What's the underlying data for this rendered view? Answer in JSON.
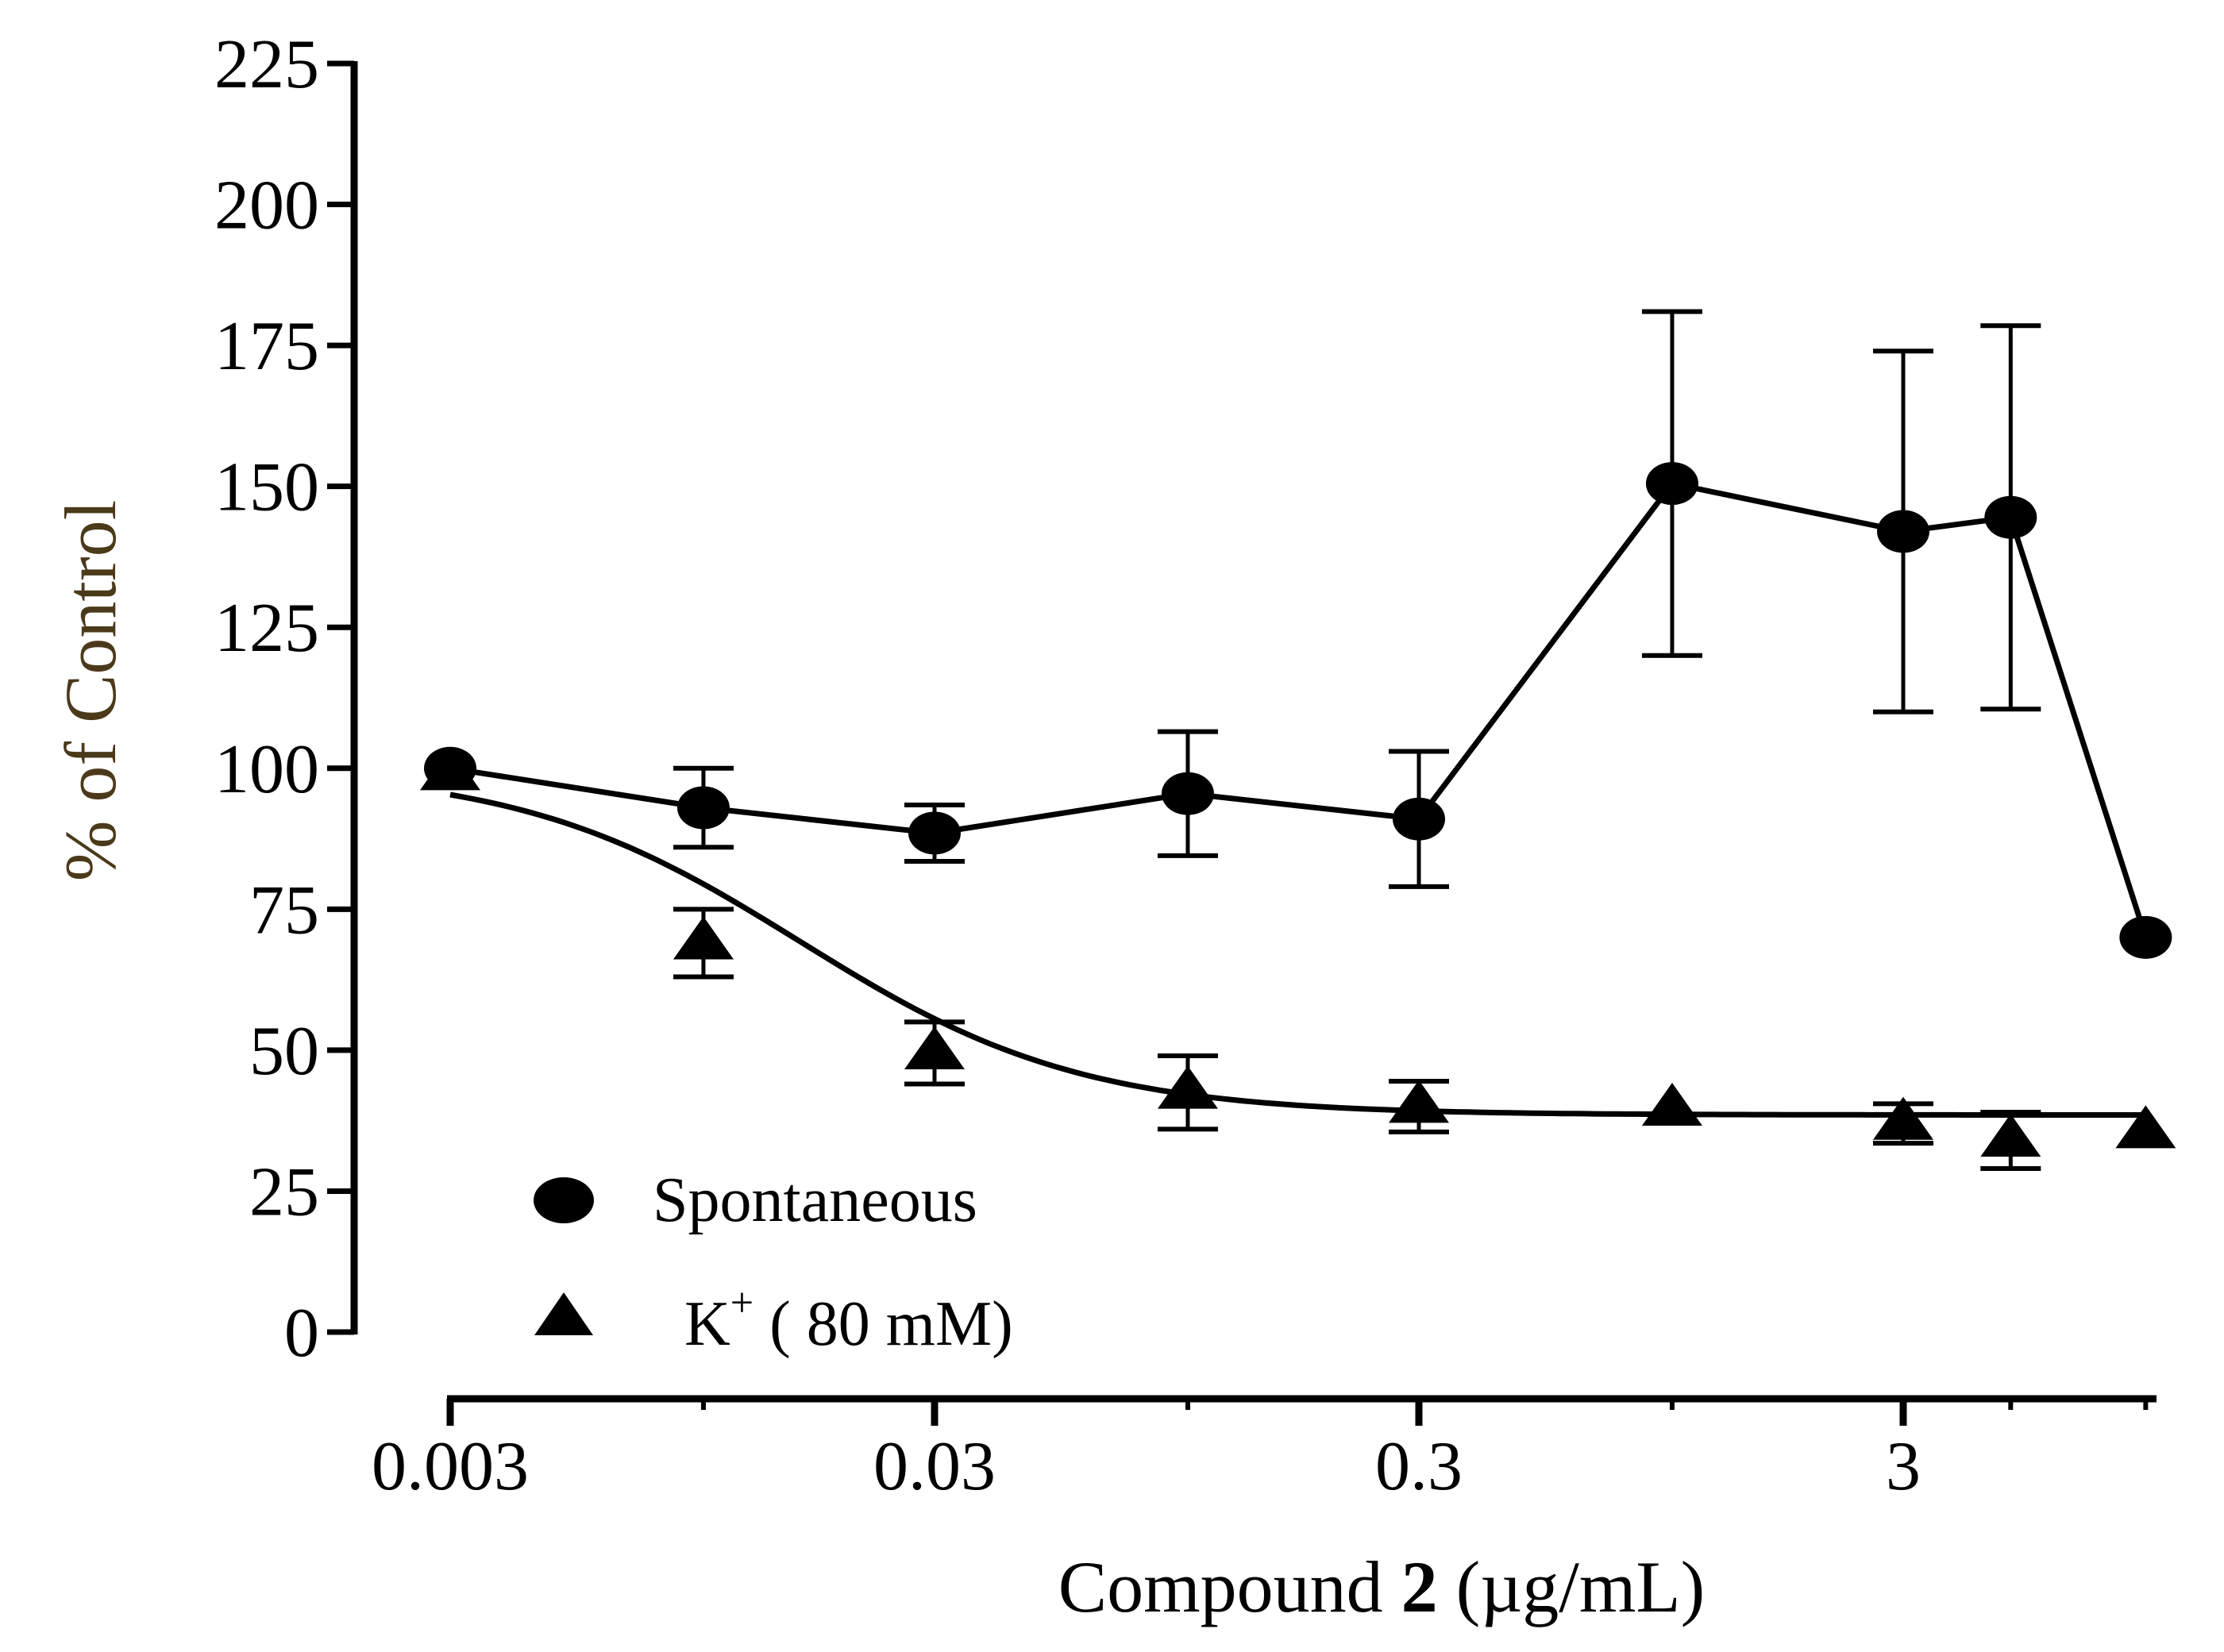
{
  "chart_data": {
    "type": "line",
    "title": "",
    "xlabel": {
      "prefix": "Compound ",
      "bold": "2",
      "suffix": " (µg/mL)"
    },
    "ylabel": "% of Control",
    "x_scale": "log",
    "xlim": [
      0.003,
      9.5
    ],
    "ylim": [
      0,
      225
    ],
    "x_ticks": [
      {
        "value": 0.003,
        "label": "0.003"
      },
      {
        "value": 0.03,
        "label": "0.03"
      },
      {
        "value": 0.3,
        "label": "0.3"
      },
      {
        "value": 3,
        "label": "3"
      }
    ],
    "x_minor_ticks": [
      0.01,
      0.1,
      1,
      5,
      9.5
    ],
    "y_ticks": [
      0,
      25,
      50,
      75,
      100,
      125,
      150,
      175,
      200,
      225
    ],
    "colors": {
      "axis": "#000000",
      "ylabel": "#4a3a1a",
      "xlabel": "#000000",
      "series": "#000000"
    },
    "legend": {
      "placement": "bottom-left",
      "entries": [
        {
          "marker": "circle",
          "label": "Spontaneous"
        },
        {
          "marker": "triangle",
          "label_main": "K",
          "label_sup": "+",
          "label_rest": " ( 80 mM)"
        }
      ]
    },
    "series": [
      {
        "name": "Spontaneous",
        "marker": "circle",
        "line": "segments",
        "points": [
          {
            "x": 0.003,
            "y": 100,
            "err": 0
          },
          {
            "x": 0.01,
            "y": 93,
            "err": 7
          },
          {
            "x": 0.03,
            "y": 88.5,
            "err": 5
          },
          {
            "x": 0.1,
            "y": 95.5,
            "err": 11
          },
          {
            "x": 0.3,
            "y": 91,
            "err": 12
          },
          {
            "x": 1,
            "y": 150.5,
            "err": 30.5
          },
          {
            "x": 3,
            "y": 142,
            "err": 32
          },
          {
            "x": 5,
            "y": 144.5,
            "err": 34
          },
          {
            "x": 9.5,
            "y": 70,
            "err": 0
          }
        ]
      },
      {
        "name": "K+ (80 mM)",
        "marker": "triangle",
        "line": "fit",
        "fit": {
          "bottom": 38.5,
          "top": 100,
          "logEC50": -1.8,
          "hill": 1.5
        },
        "points": [
          {
            "x": 0.003,
            "y": 99,
            "err": 0
          },
          {
            "x": 0.01,
            "y": 69,
            "err": 6
          },
          {
            "x": 0.03,
            "y": 49.5,
            "err": 5.5
          },
          {
            "x": 0.1,
            "y": 42.5,
            "err": 6.5
          },
          {
            "x": 0.3,
            "y": 40,
            "err": 4.5
          },
          {
            "x": 1,
            "y": 39.5,
            "err": 0
          },
          {
            "x": 3,
            "y": 37,
            "err": 3.5
          },
          {
            "x": 5,
            "y": 34,
            "err": 5
          },
          {
            "x": 9.5,
            "y": 35.5,
            "err": 0
          }
        ]
      }
    ]
  }
}
